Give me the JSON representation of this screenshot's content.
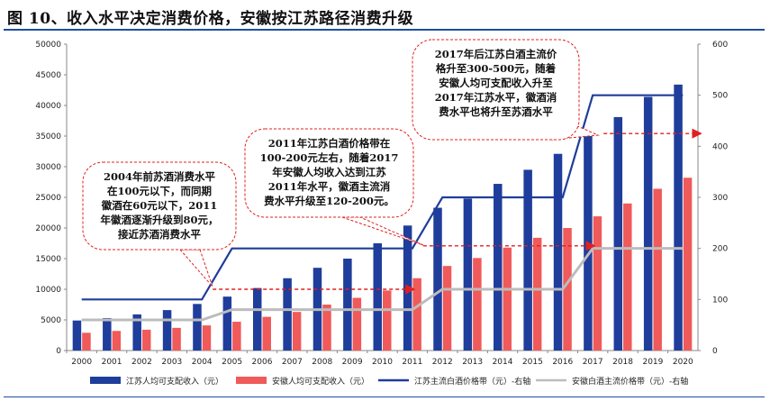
{
  "page": {
    "title": "图 10、收入水平决定消费价格，安徽按江苏路径消费升级"
  },
  "colors": {
    "jiangsu_income": "#1f3d9b",
    "anhui_income": "#f05a5a",
    "jiangsu_price": "#1f3d9b",
    "anhui_price": "#bcbcbc",
    "accent": "#1f4e9c",
    "annotation": "#e02020"
  },
  "chart_data": {
    "type": "bar",
    "categories": [
      "2000",
      "2001",
      "2002",
      "2003",
      "2004",
      "2005",
      "2006",
      "2007",
      "2008",
      "2009",
      "2010",
      "2011",
      "2012",
      "2013",
      "2014",
      "2015",
      "2016",
      "2017",
      "2018",
      "2019",
      "2020"
    ],
    "left_axis": {
      "ylim": [
        0,
        50000
      ],
      "ticks": [
        "0",
        "5000",
        "10000",
        "15000",
        "20000",
        "25000",
        "30000",
        "35000",
        "40000",
        "45000",
        "50000"
      ]
    },
    "right_axis": {
      "ylim": [
        0,
        600
      ],
      "ticks": [
        "0",
        "100",
        "200",
        "300",
        "400",
        "500",
        "600"
      ]
    },
    "series": [
      {
        "name": "江苏人均可支配收入（元）",
        "type": "bar",
        "axis": "left",
        "color": "#1f3d9b",
        "values": [
          4900,
          5300,
          5900,
          6600,
          7600,
          8800,
          10200,
          11800,
          13500,
          15000,
          17500,
          20400,
          23300,
          24800,
          27200,
          29500,
          32100,
          35000,
          38100,
          41400,
          43400
        ]
      },
      {
        "name": "安徽人均可支配收入（元）",
        "type": "bar",
        "axis": "left",
        "color": "#f05a5a",
        "values": [
          2900,
          3200,
          3400,
          3700,
          4100,
          4700,
          5500,
          6300,
          7500,
          8600,
          9800,
          11800,
          13800,
          15100,
          16800,
          18400,
          20000,
          21900,
          24000,
          26400,
          28200
        ]
      },
      {
        "name": "江苏主流白酒价格带（元）-右轴",
        "type": "line",
        "axis": "right",
        "color": "#1f3d9b",
        "values": [
          100,
          100,
          100,
          100,
          100,
          200,
          200,
          200,
          200,
          200,
          200,
          200,
          300,
          300,
          300,
          300,
          300,
          500,
          500,
          500,
          500
        ]
      },
      {
        "name": "安徽白酒主流价格带（元）-右轴",
        "type": "line",
        "axis": "right",
        "color": "#bcbcbc",
        "values": [
          60,
          60,
          60,
          60,
          60,
          80,
          80,
          80,
          80,
          80,
          80,
          80,
          120,
          120,
          120,
          120,
          120,
          200,
          200,
          200,
          200
        ]
      }
    ],
    "annotations": [
      {
        "id": "c1",
        "lines": [
          "2004年前苏酒消费水平",
          "在100元以下，而同期",
          "徽酒在60元以下，2011",
          "年徽酒逐渐升级到80元，",
          "接近苏酒消费水平"
        ],
        "arrow": {
          "y_right": 120,
          "from": "2004",
          "to": "2011",
          "color": "#e02020"
        }
      },
      {
        "id": "c2",
        "lines": [
          "2011年江苏白酒价格带在",
          "100-200元左右，随着2017",
          "年安徽人均收入达到江苏",
          "2011年水平，徽酒主流消",
          "费水平升级至120-200元。"
        ],
        "arrow": {
          "y_right": 205,
          "from": "2011",
          "to": "2017",
          "color": "#e02020"
        }
      },
      {
        "id": "c3",
        "lines": [
          "2017年后江苏白酒主流价",
          "格升至300-500元，随着",
          "安徽人均可支配收入升至",
          "2017年江苏水平，徽酒消",
          "费水平也将升至苏酒水平"
        ],
        "arrow": {
          "y_right": 425,
          "from": "2017",
          "to": "2020",
          "color": "#e02020"
        }
      }
    ],
    "grid": false,
    "legend_position": "bottom"
  }
}
